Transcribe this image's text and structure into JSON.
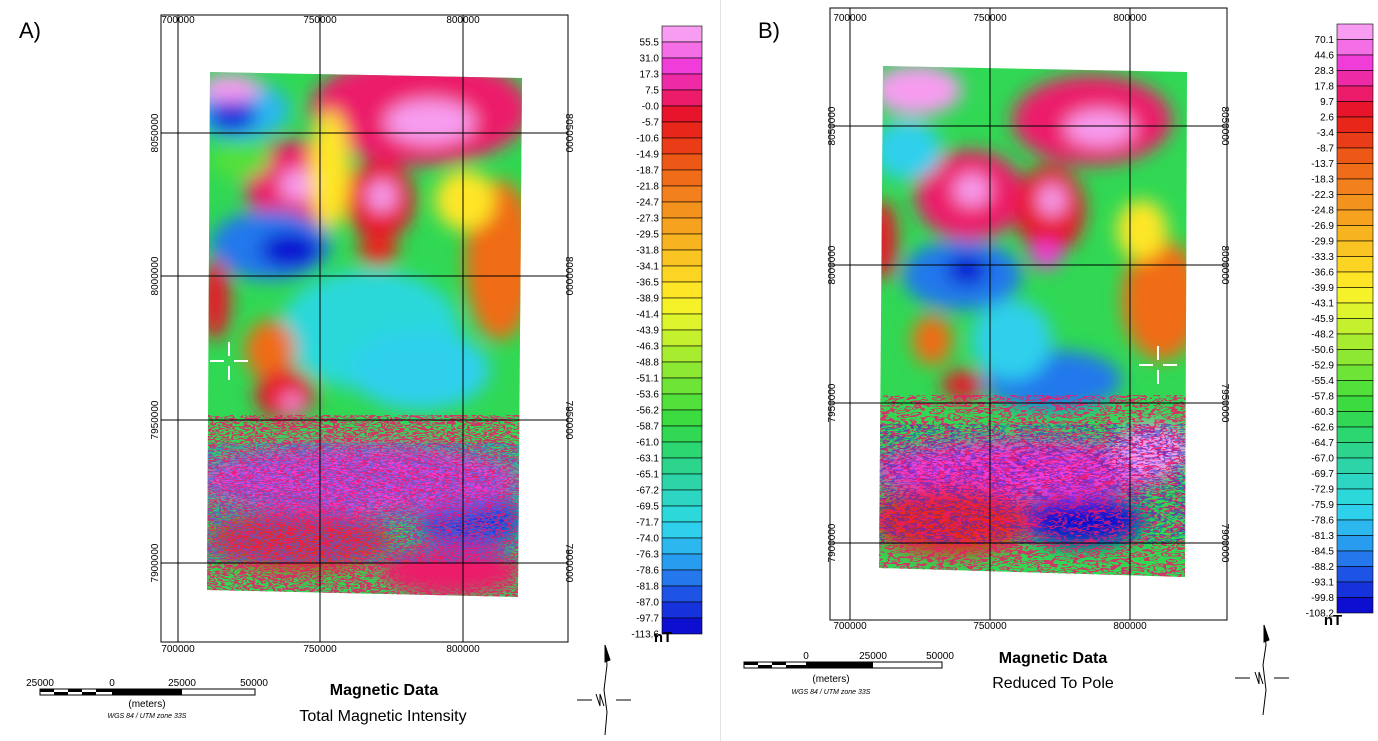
{
  "panels": [
    {
      "label": "A)",
      "x_ticks_top": [
        "700000",
        "750000",
        "800000"
      ],
      "x_ticks_bottom": [
        "700000",
        "750000",
        "800000"
      ],
      "y_ticks": [
        "8050000",
        "8000000",
        "7950000",
        "7900000"
      ],
      "legend_values": [
        "55.5",
        "31.0",
        "17.3",
        "7.5",
        "-0.0",
        "-5.7",
        "-10.6",
        "-14.9",
        "-18.7",
        "-21.8",
        "-24.7",
        "-27.3",
        "-29.5",
        "-31.8",
        "-34.1",
        "-36.5",
        "-38.9",
        "-41.4",
        "-43.9",
        "-46.3",
        "-48.8",
        "-51.1",
        "-53.6",
        "-56.2",
        "-58.7",
        "-61.0",
        "-63.1",
        "-65.1",
        "-67.2",
        "-69.5",
        "-71.7",
        "-74.0",
        "-76.3",
        "-78.6",
        "-81.8",
        "-87.0",
        "-97.7",
        "-113.6"
      ],
      "unit": "nT",
      "title": "Magnetic Data",
      "subtitle": "Total Magnetic Intensity",
      "scale_numbers": [
        "25000",
        "0",
        "25000",
        "50000"
      ],
      "scale_unit": "(meters)",
      "projection": "WGS 84 / UTM zone 33S"
    },
    {
      "label": "B)",
      "x_ticks_top": [
        "700000",
        "750000",
        "800000"
      ],
      "x_ticks_bottom": [
        "700000",
        "750000",
        "800000"
      ],
      "y_ticks": [
        "8050000",
        "8000000",
        "7950000",
        "7900000"
      ],
      "legend_values": [
        "70.1",
        "44.6",
        "28.3",
        "17.8",
        "9.7",
        "2.6",
        "-3.4",
        "-8.7",
        "-13.7",
        "-18.3",
        "-22.3",
        "-24.8",
        "-26.9",
        "-29.9",
        "-33.3",
        "-36.6",
        "-39.9",
        "-43.1",
        "-45.9",
        "-48.2",
        "-50.6",
        "-52.9",
        "-55.4",
        "-57.8",
        "-60.3",
        "-62.6",
        "-64.7",
        "-67.0",
        "-69.7",
        "-72.9",
        "-75.9",
        "-78.6",
        "-81.3",
        "-84.5",
        "-88.2",
        "-93.1",
        "-99.8",
        "-108.2"
      ],
      "unit": "nT",
      "title": "Magnetic Data",
      "subtitle": "Reduced To Pole",
      "scale_numbers": [
        "0",
        "25000",
        "50000"
      ],
      "scale_unit": "(meters)",
      "projection": "WGS 84 / UTM zone 33S"
    }
  ],
  "colors": {
    "colorbar": [
      "#f79cf0",
      "#f46fe6",
      "#f03cd8",
      "#ee2aa6",
      "#ec1c6a",
      "#e8142c",
      "#e8261a",
      "#ea3c16",
      "#ee5816",
      "#f06c18",
      "#f2801c",
      "#f4921e",
      "#f6a21e",
      "#f8b420",
      "#fac422",
      "#fcd424",
      "#fee626",
      "#f6f22a",
      "#def42c",
      "#c4f02e",
      "#a8ec30",
      "#8ce832",
      "#6ee436",
      "#52e03a",
      "#3cdc40",
      "#30d854",
      "#2cd670",
      "#2cd48c",
      "#2cd4a8",
      "#2cd6c2",
      "#2cd8da",
      "#2ed0ec",
      "#2cb8ee",
      "#289cee",
      "#2478ec",
      "#1e54e6",
      "#1632dc",
      "#0e0ed0"
    ]
  }
}
